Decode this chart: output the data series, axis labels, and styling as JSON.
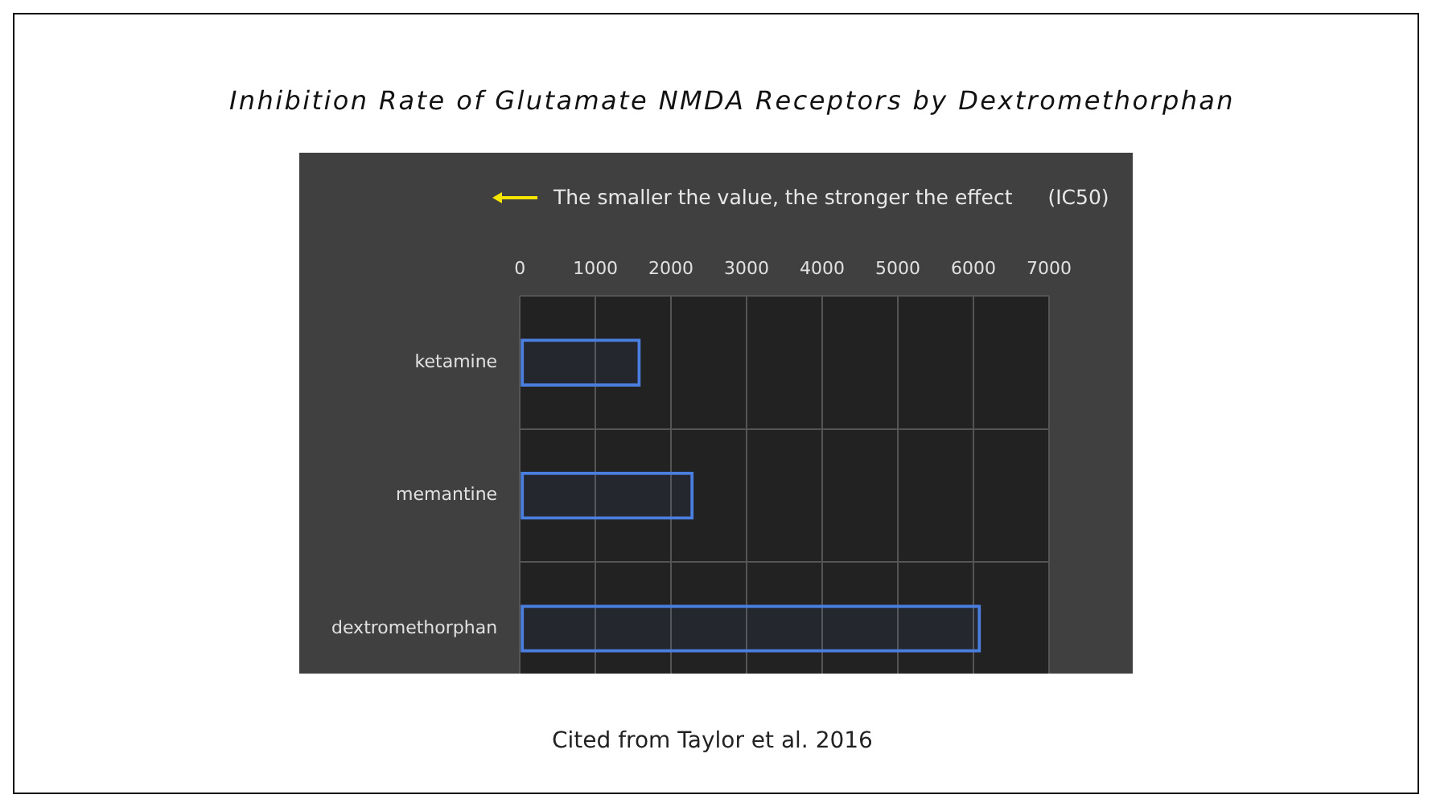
{
  "chart_data": {
    "type": "bar",
    "orientation": "horizontal",
    "title": "Inhibition Rate of Glutamate NMDA Receptors by Dextromethorphan",
    "categories": [
      "ketamine",
      "memantine",
      "dextromethorphan"
    ],
    "values": [
      1600,
      2300,
      6100
    ],
    "color": "#4a7fe0",
    "xlim": [
      0,
      7000
    ],
    "xticks": [
      0,
      1000,
      2000,
      3000,
      4000,
      5000,
      6000,
      7000
    ],
    "xlabel": "(IC50)",
    "annotations": [
      "The smaller the value, the stronger the effect",
      "Cited from Taylor et al. 2016"
    ],
    "grid": true
  }
}
